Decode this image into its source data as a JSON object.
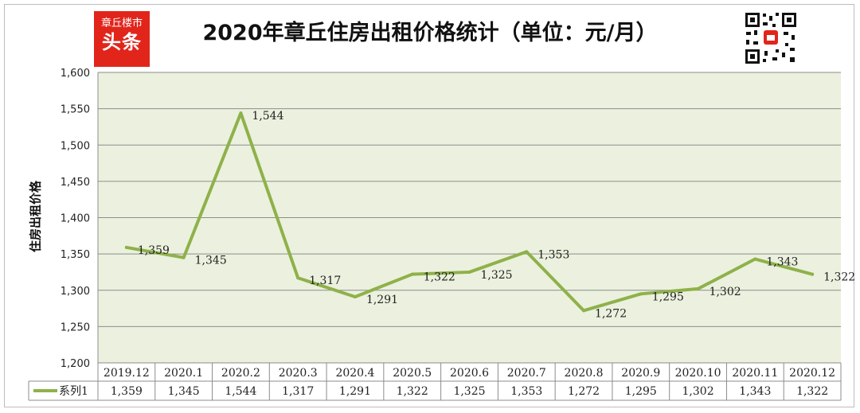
{
  "header": {
    "logo_line1": "章丘楼市",
    "logo_line2": "头条",
    "title": "2020年章丘住房出租价格统计（单位：元/月）"
  },
  "colors": {
    "plot_bg": "#ebf1de",
    "line": "#8fb14a",
    "logo_red": "#e1251b",
    "grid": "#8c8c8c"
  },
  "chart_data": {
    "type": "line",
    "title": "2020年章丘住房出租价格统计（单位：元/月）",
    "ylabel": "住房出租价格",
    "xlabel": "",
    "categories": [
      "2019.12",
      "2020.1",
      "2020.2",
      "2020.3",
      "2020.4",
      "2020.5",
      "2020.6",
      "2020.7",
      "2020.8",
      "2020.9",
      "2020.10",
      "2020.11",
      "2020.12"
    ],
    "series": [
      {
        "name": "系列1",
        "values": [
          1359,
          1345,
          1544,
          1317,
          1291,
          1322,
          1325,
          1353,
          1272,
          1295,
          1302,
          1343,
          1322
        ]
      }
    ],
    "value_labels": [
      "1,359",
      "1,345",
      "1,544",
      "1,317",
      "1,291",
      "1,322",
      "1,325",
      "1,353",
      "1,272",
      "1,295",
      "1,302",
      "1,343",
      "1,322"
    ],
    "ylim": [
      1200,
      1600
    ],
    "yticks": [
      1200,
      1250,
      1300,
      1350,
      1400,
      1450,
      1500,
      1550,
      1600
    ],
    "ytick_labels": [
      "1,200",
      "1,250",
      "1,300",
      "1,350",
      "1,400",
      "1,450",
      "1,500",
      "1,550",
      "1,600"
    ],
    "grid": true,
    "data_table": true,
    "legend": "data-table-left"
  }
}
